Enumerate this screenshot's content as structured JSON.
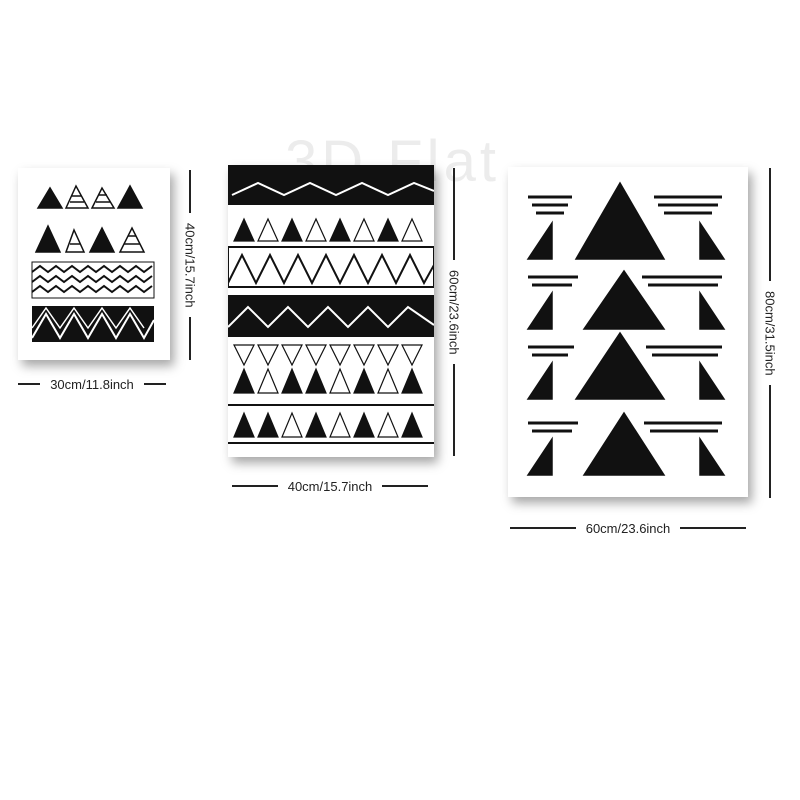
{
  "watermark": "3D Flat",
  "posters": [
    {
      "width_label": "30cm/11.8inch",
      "height_label": "40cm/15.7inch"
    },
    {
      "width_label": "40cm/15.7inch",
      "height_label": "60cm/23.6inch"
    },
    {
      "width_label": "60cm/23.6inch",
      "height_label": "80cm/31.5inch"
    }
  ],
  "colors": {
    "ink": "#111111",
    "paper": "#ffffff"
  }
}
